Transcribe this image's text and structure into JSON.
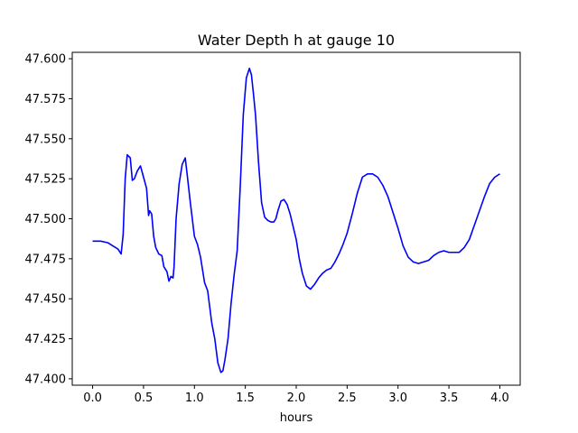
{
  "chart_data": {
    "type": "line",
    "title": "Water Depth h at gauge 10",
    "xlabel": "hours",
    "ylabel": "",
    "xlim": [
      -0.2,
      4.2
    ],
    "ylim": [
      47.396,
      47.604
    ],
    "x_ticks": [
      0.0,
      0.5,
      1.0,
      1.5,
      2.0,
      2.5,
      3.0,
      3.5,
      4.0
    ],
    "x_tick_labels": [
      "0.0",
      "0.5",
      "1.0",
      "1.5",
      "2.0",
      "2.5",
      "3.0",
      "3.5",
      "4.0"
    ],
    "y_ticks": [
      47.4,
      47.425,
      47.45,
      47.475,
      47.5,
      47.525,
      47.55,
      47.575,
      47.6
    ],
    "y_tick_labels": [
      "47.400",
      "47.425",
      "47.450",
      "47.475",
      "47.500",
      "47.525",
      "47.550",
      "47.575",
      "47.600"
    ],
    "grid": false,
    "series": [
      {
        "color": "#0000ff",
        "x": [
          0.0,
          0.08,
          0.15,
          0.2,
          0.25,
          0.28,
          0.3,
          0.32,
          0.34,
          0.37,
          0.39,
          0.41,
          0.44,
          0.47,
          0.5,
          0.53,
          0.55,
          0.56,
          0.58,
          0.6,
          0.62,
          0.65,
          0.68,
          0.7,
          0.73,
          0.75,
          0.77,
          0.79,
          0.8,
          0.82,
          0.85,
          0.88,
          0.91,
          0.93,
          0.96,
          1.0,
          1.03,
          1.06,
          1.1,
          1.13,
          1.17,
          1.2,
          1.23,
          1.26,
          1.28,
          1.3,
          1.33,
          1.36,
          1.39,
          1.42,
          1.45,
          1.48,
          1.51,
          1.54,
          1.56,
          1.58,
          1.6,
          1.63,
          1.66,
          1.69,
          1.72,
          1.75,
          1.78,
          1.8,
          1.82,
          1.85,
          1.88,
          1.91,
          1.94,
          1.97,
          2.0,
          2.03,
          2.06,
          2.1,
          2.14,
          2.18,
          2.22,
          2.26,
          2.3,
          2.34,
          2.38,
          2.42,
          2.46,
          2.5,
          2.55,
          2.6,
          2.65,
          2.7,
          2.75,
          2.8,
          2.85,
          2.9,
          2.95,
          3.0,
          3.05,
          3.1,
          3.15,
          3.2,
          3.25,
          3.3,
          3.35,
          3.4,
          3.45,
          3.5,
          3.55,
          3.6,
          3.65,
          3.7,
          3.75,
          3.8,
          3.85,
          3.9,
          3.95,
          4.0
        ],
        "y": [
          47.486,
          47.486,
          47.485,
          47.483,
          47.481,
          47.478,
          47.49,
          47.525,
          47.54,
          47.538,
          47.524,
          47.525,
          47.53,
          47.533,
          47.526,
          47.519,
          47.502,
          47.505,
          47.503,
          47.489,
          47.482,
          47.478,
          47.477,
          47.47,
          47.467,
          47.461,
          47.464,
          47.463,
          47.47,
          47.5,
          47.522,
          47.534,
          47.538,
          47.527,
          47.51,
          47.489,
          47.484,
          47.476,
          47.46,
          47.455,
          47.435,
          47.425,
          47.41,
          47.404,
          47.405,
          47.412,
          47.425,
          47.447,
          47.465,
          47.48,
          47.52,
          47.565,
          47.588,
          47.594,
          47.59,
          47.578,
          47.565,
          47.535,
          47.51,
          47.501,
          47.499,
          47.498,
          47.498,
          47.5,
          47.505,
          47.511,
          47.512,
          47.509,
          47.503,
          47.495,
          47.487,
          47.475,
          47.466,
          47.458,
          47.456,
          47.459,
          47.463,
          47.466,
          47.468,
          47.469,
          47.473,
          47.478,
          47.484,
          47.491,
          47.503,
          47.516,
          47.526,
          47.528,
          47.528,
          47.526,
          47.521,
          47.514,
          47.504,
          47.494,
          47.483,
          47.476,
          47.473,
          47.472,
          47.473,
          47.474,
          47.477,
          47.479,
          47.48,
          47.479,
          47.479,
          47.479,
          47.482,
          47.487,
          47.496,
          47.505,
          47.514,
          47.522,
          47.526,
          47.528
        ]
      }
    ]
  }
}
